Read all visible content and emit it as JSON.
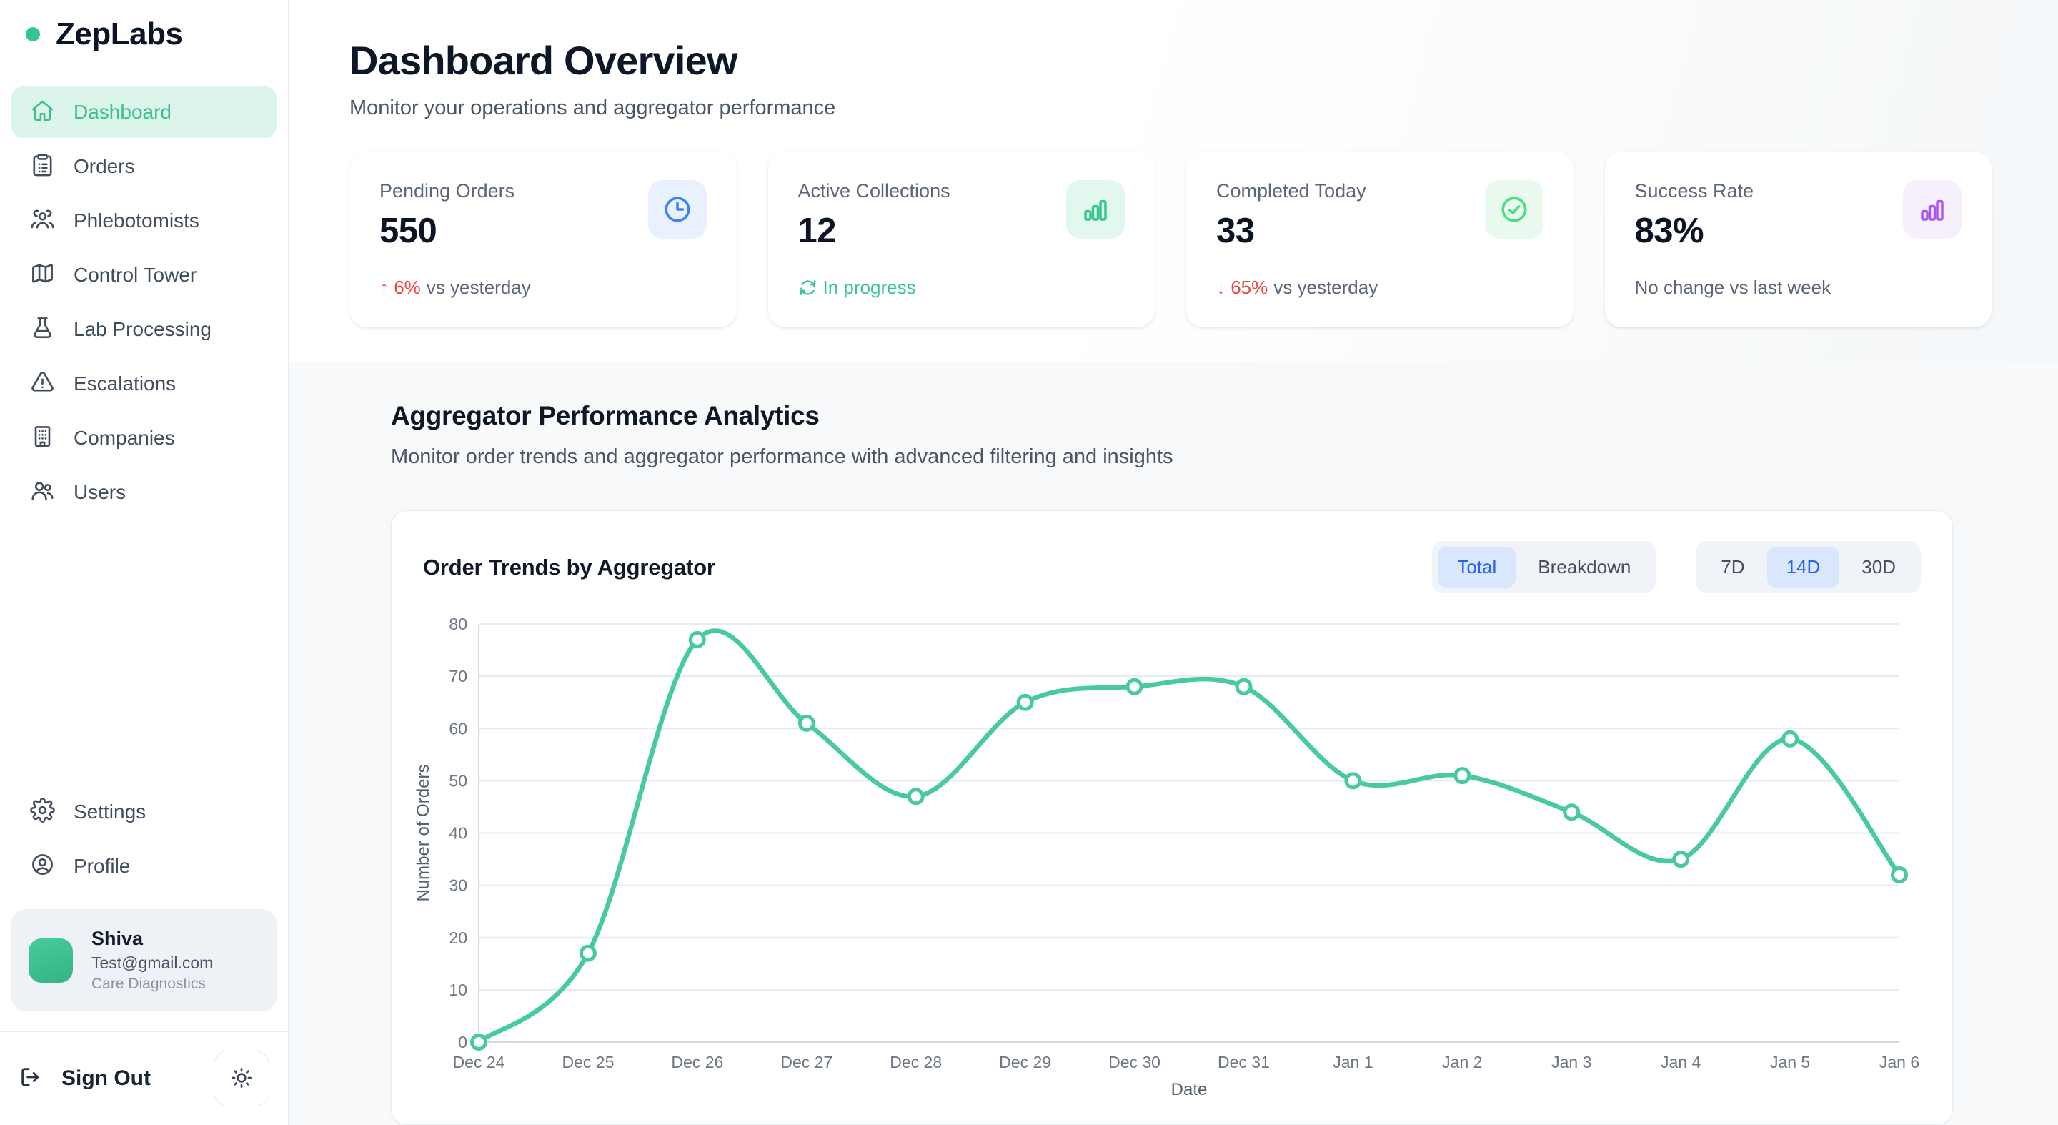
{
  "brand": {
    "name": "ZepLabs"
  },
  "sidebar": {
    "nav": [
      {
        "label": "Dashboard",
        "icon": "home",
        "active": true
      },
      {
        "label": "Orders",
        "icon": "clipboard",
        "active": false
      },
      {
        "label": "Phlebotomists",
        "icon": "people-group",
        "active": false
      },
      {
        "label": "Control Tower",
        "icon": "map",
        "active": false
      },
      {
        "label": "Lab Processing",
        "icon": "flask",
        "active": false
      },
      {
        "label": "Escalations",
        "icon": "alert-triangle",
        "active": false
      },
      {
        "label": "Companies",
        "icon": "building",
        "active": false
      },
      {
        "label": "Users",
        "icon": "users",
        "active": false
      }
    ],
    "secondary": [
      {
        "label": "Settings",
        "icon": "gear",
        "active": false
      },
      {
        "label": "Profile",
        "icon": "user-circle",
        "active": false
      }
    ],
    "user": {
      "name": "Shiva",
      "email": "Test@gmail.com",
      "company": "Care Diagnostics"
    },
    "sign_out_label": "Sign Out"
  },
  "header": {
    "title": "Dashboard Overview",
    "subtitle": "Monitor your operations and aggregator performance"
  },
  "cards": [
    {
      "label": "Pending Orders",
      "value": "550",
      "icon": "clock",
      "icon_color": "#3b82f6",
      "icon_bg": "#e8f1fd",
      "delta": {
        "glyph": "up",
        "text": "6%",
        "suffix": "vs yesterday",
        "color": "#ef4444"
      }
    },
    {
      "label": "Active Collections",
      "value": "12",
      "icon": "bar-chart",
      "icon_color": "#35c58f",
      "icon_bg": "#e2f8ef",
      "delta": {
        "glyph": "refresh",
        "text": "In progress",
        "suffix": "",
        "color": "#35c58f"
      }
    },
    {
      "label": "Completed Today",
      "value": "33",
      "icon": "check-circle",
      "icon_color": "#4ade80",
      "icon_bg": "#e9f9ee",
      "delta": {
        "glyph": "down",
        "text": "65%",
        "suffix": "vs yesterday",
        "color": "#ef4444"
      }
    },
    {
      "label": "Success Rate",
      "value": "83%",
      "icon": "bar-chart",
      "icon_color": "#a855f7",
      "icon_bg": "#f5f0fc",
      "delta": {
        "glyph": "none",
        "text": "",
        "suffix": "No change vs last week",
        "color": "#5b6676"
      }
    }
  ],
  "analytics": {
    "title": "Aggregator Performance Analytics",
    "subtitle": "Monitor order trends and aggregator performance with advanced filtering and insights"
  },
  "chart_card": {
    "title": "Order Trends by Aggregator",
    "view_toggle": {
      "options": [
        "Total",
        "Breakdown"
      ],
      "selected": "Total"
    },
    "range_toggle": {
      "options": [
        "7D",
        "14D",
        "30D"
      ],
      "selected": "14D"
    }
  },
  "chart_data": {
    "type": "line",
    "x": [
      "Dec 24",
      "Dec 25",
      "Dec 26",
      "Dec 27",
      "Dec 28",
      "Dec 29",
      "Dec 30",
      "Dec 31",
      "Jan 1",
      "Jan 2",
      "Jan 3",
      "Jan 4",
      "Jan 5",
      "Jan 6"
    ],
    "values": [
      0,
      17,
      77,
      61,
      47,
      65,
      68,
      68,
      50,
      51,
      44,
      35,
      58,
      32
    ],
    "title": "Order Trends by Aggregator",
    "xlabel": "Date",
    "ylabel": "Number of Orders",
    "ylim": [
      0,
      80
    ],
    "ytick_step": 10,
    "grid": true,
    "legend": "none",
    "line_color": "#47cb9c",
    "marker_fill": "#ffffff",
    "grid_color": "#e7eaee",
    "axis_color": "#d3d9e0",
    "tick_color": "#6e7684"
  }
}
